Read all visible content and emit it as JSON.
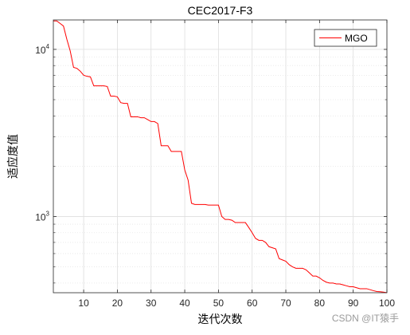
{
  "chart_data": {
    "type": "line",
    "title": "CEC2017-F3",
    "xlabel": "迭代次数",
    "ylabel": "适应度值",
    "xlim": [
      1,
      100
    ],
    "ylim": [
      350,
      15000
    ],
    "yscale": "log",
    "x_ticks": [
      10,
      20,
      30,
      40,
      50,
      60,
      70,
      80,
      90,
      100
    ],
    "x_tick_labels": [
      "10",
      "20",
      "30",
      "40",
      "50",
      "60",
      "70",
      "80",
      "90",
      "100"
    ],
    "y_ticks": [
      1000,
      10000
    ],
    "y_tick_labels": [
      {
        "base": "10",
        "exp": "3"
      },
      {
        "base": "10",
        "exp": "4"
      }
    ],
    "grid": true,
    "legend_position": "top-right",
    "series": [
      {
        "name": "MGO",
        "color": "#ff0000",
        "x": [
          1,
          2,
          3,
          4,
          5,
          6,
          7,
          8,
          9,
          10,
          11,
          12,
          13,
          14,
          15,
          16,
          17,
          18,
          19,
          20,
          21,
          22,
          23,
          24,
          25,
          26,
          27,
          28,
          29,
          30,
          31,
          32,
          33,
          34,
          35,
          36,
          37,
          38,
          39,
          40,
          41,
          42,
          43,
          44,
          45,
          46,
          47,
          48,
          49,
          50,
          51,
          52,
          53,
          54,
          55,
          56,
          57,
          58,
          59,
          60,
          61,
          62,
          63,
          64,
          65,
          66,
          67,
          68,
          69,
          70,
          71,
          72,
          73,
          74,
          75,
          76,
          77,
          78,
          79,
          80,
          81,
          82,
          83,
          84,
          85,
          86,
          87,
          88,
          89,
          90,
          91,
          92,
          93,
          94,
          95,
          96,
          97,
          98,
          99,
          100
        ],
        "values": [
          14800,
          14800,
          14300,
          13800,
          11500,
          9800,
          7800,
          7700,
          7400,
          7000,
          6900,
          6850,
          6050,
          6050,
          6050,
          6050,
          6000,
          5250,
          5250,
          5200,
          4800,
          4750,
          4750,
          3950,
          3950,
          3950,
          3900,
          3900,
          3800,
          3700,
          3700,
          3600,
          2650,
          2650,
          2650,
          2450,
          2450,
          2450,
          2450,
          1900,
          1650,
          1200,
          1180,
          1180,
          1180,
          1180,
          1170,
          1170,
          1170,
          1170,
          1000,
          960,
          960,
          950,
          920,
          920,
          920,
          920,
          860,
          800,
          740,
          720,
          720,
          700,
          660,
          650,
          640,
          560,
          550,
          540,
          515,
          500,
          490,
          490,
          490,
          480,
          460,
          440,
          440,
          430,
          415,
          405,
          400,
          400,
          395,
          395,
          390,
          385,
          380,
          380,
          375,
          370,
          370,
          370,
          365,
          360,
          356,
          355,
          353,
          350
        ]
      }
    ]
  },
  "watermark": "CSDN @IT猿手"
}
